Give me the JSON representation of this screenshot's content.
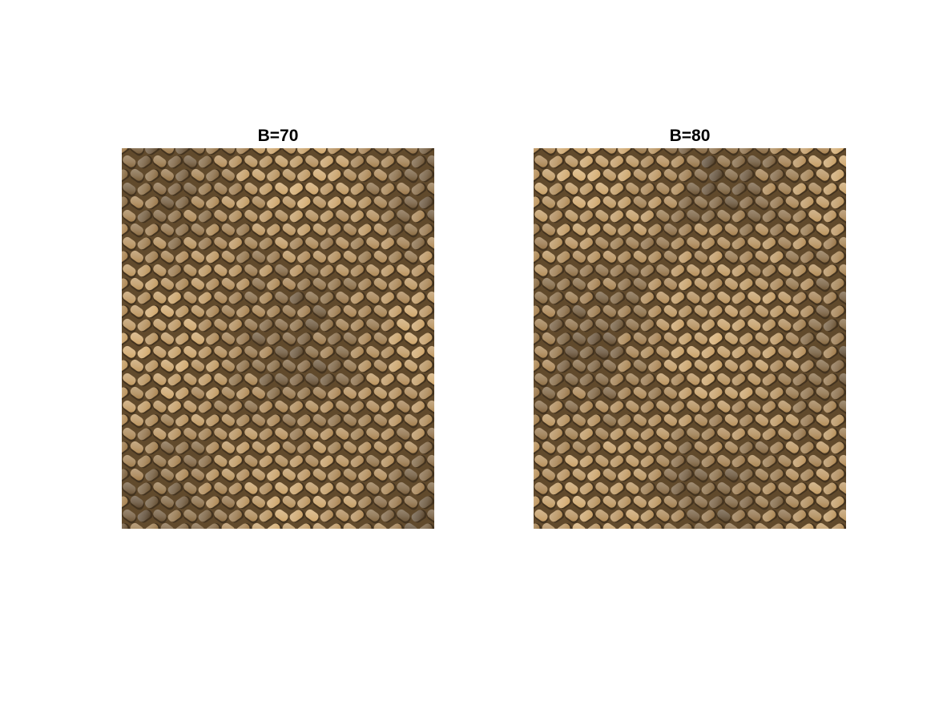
{
  "figure": {
    "panels": [
      {
        "title": "B=70",
        "image_description_name": "woven-basket-texture-image",
        "variant": "seed-a"
      },
      {
        "title": "B=80",
        "image_description_name": "woven-basket-texture-image",
        "variant": "seed-b"
      }
    ],
    "colors": {
      "background": "#ffffff",
      "weave_light": "#d9ad6c",
      "weave_mid": "#a27b47",
      "weave_dark": "#3e2f1e"
    }
  }
}
